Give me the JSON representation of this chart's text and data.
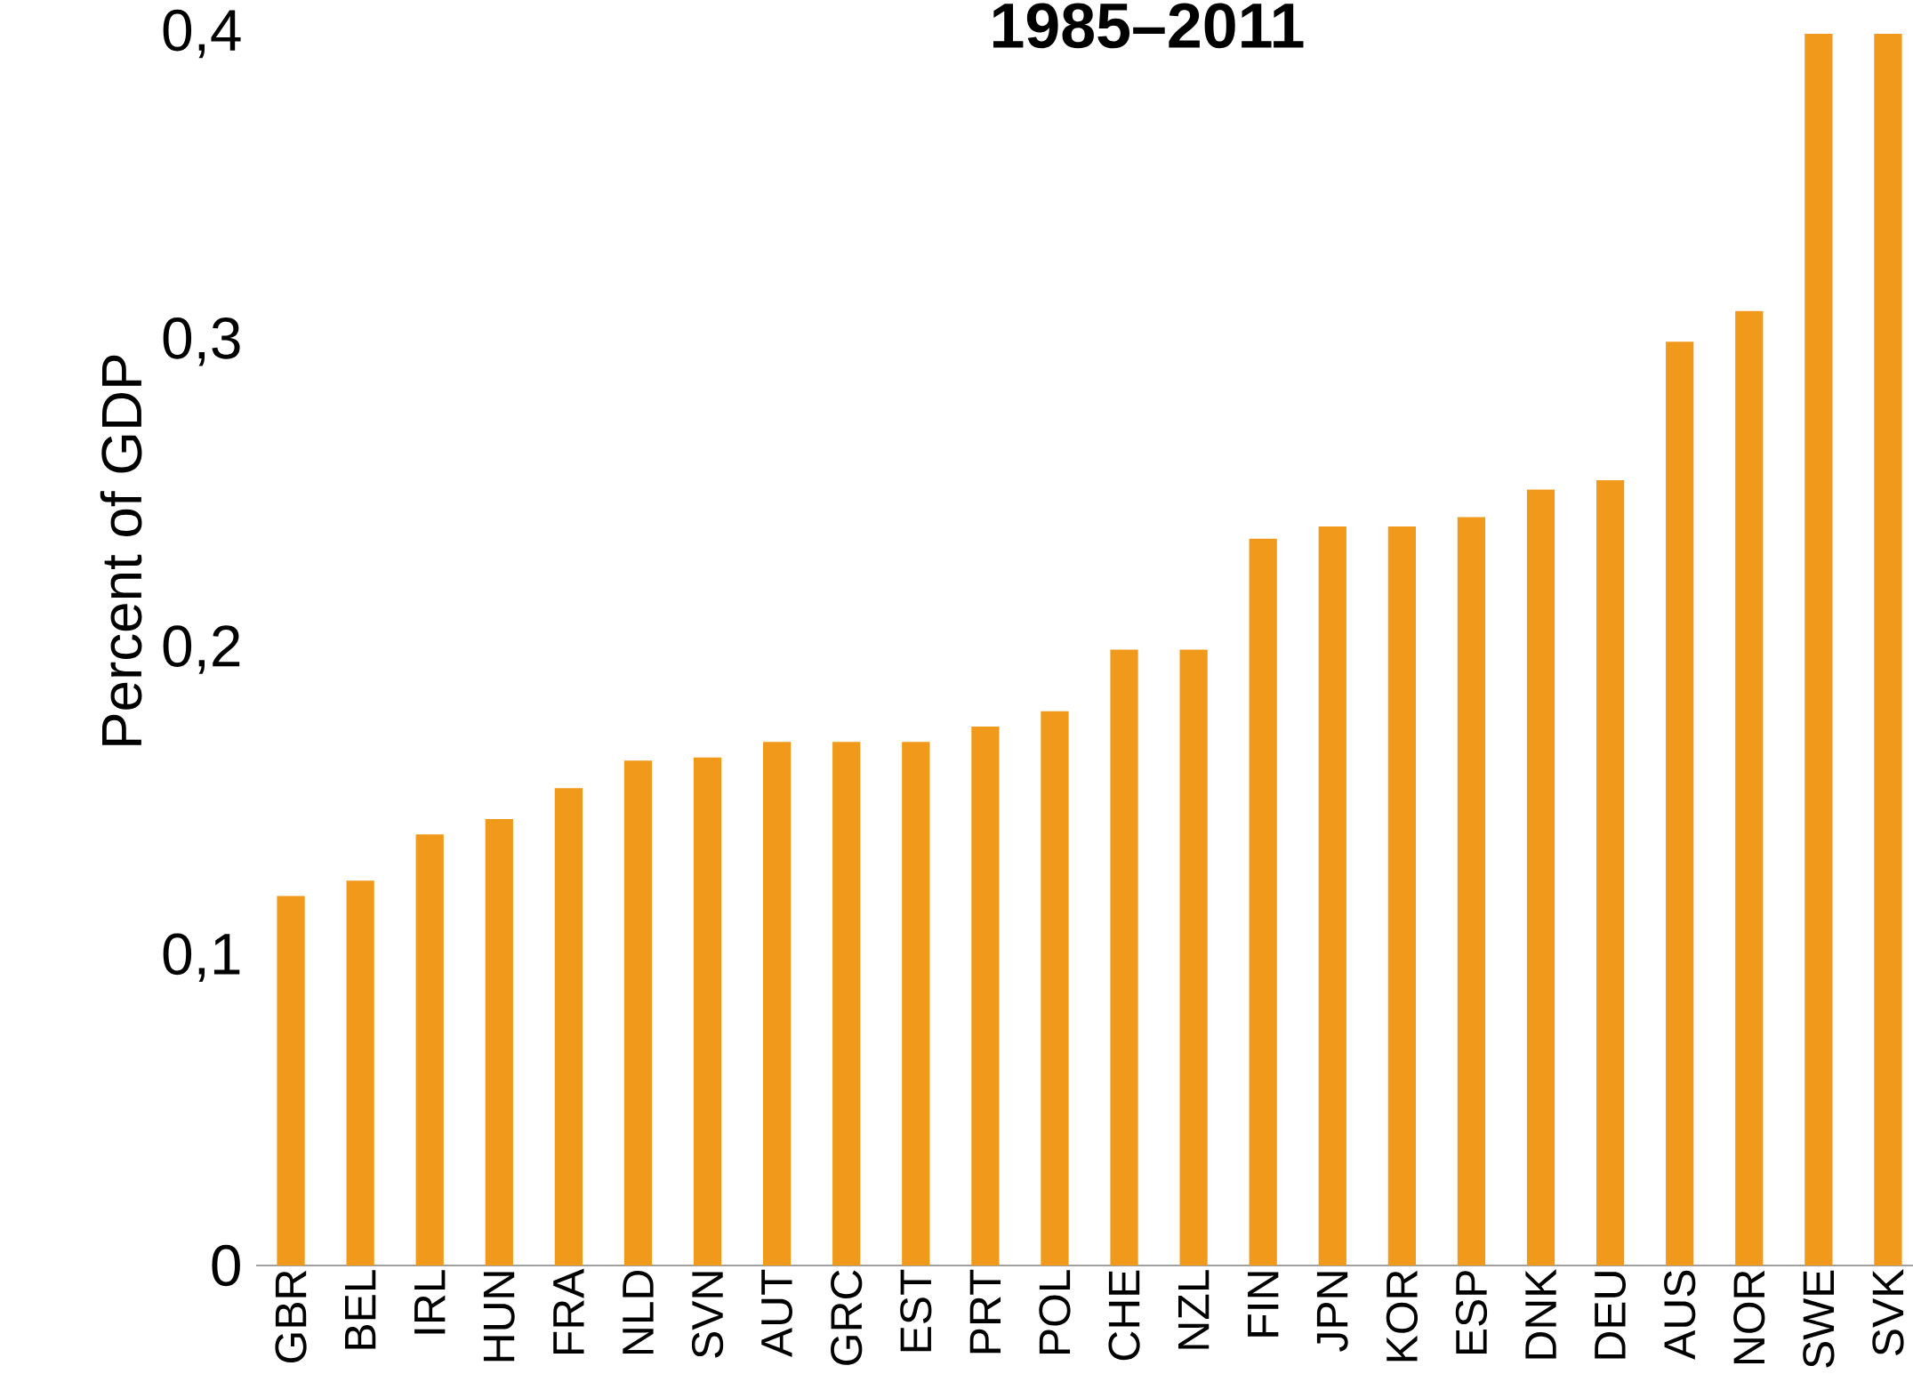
{
  "chart_data": {
    "type": "bar",
    "title": "1985–2011",
    "ylabel": "Percent of GDP",
    "categories": [
      "GBR",
      "BEL",
      "IRL",
      "HUN",
      "FRA",
      "NLD",
      "SVN",
      "AUT",
      "GRC",
      "EST",
      "PRT",
      "POL",
      "CHE",
      "NZL",
      "FIN",
      "JPN",
      "KOR",
      "ESP",
      "DNK",
      "DEU",
      "AUS",
      "NOR",
      "SWE",
      "SVK"
    ],
    "values": [
      0.12,
      0.125,
      0.14,
      0.145,
      0.155,
      0.164,
      0.165,
      0.17,
      0.17,
      0.17,
      0.175,
      0.18,
      0.2,
      0.2,
      0.236,
      0.24,
      0.24,
      0.243,
      0.252,
      0.255,
      0.3,
      0.31,
      0.4,
      0.4
    ],
    "color": "#f0991a",
    "ylim": [
      0,
      0.4
    ],
    "yticks": [
      0,
      {
        "value": 0.1,
        "label": "0,1"
      },
      {
        "value": 0.2,
        "label": "0,2"
      },
      {
        "value": 0.3,
        "label": "0,3"
      },
      {
        "value": 0.4,
        "label": "0,4"
      }
    ],
    "grid": false
  }
}
